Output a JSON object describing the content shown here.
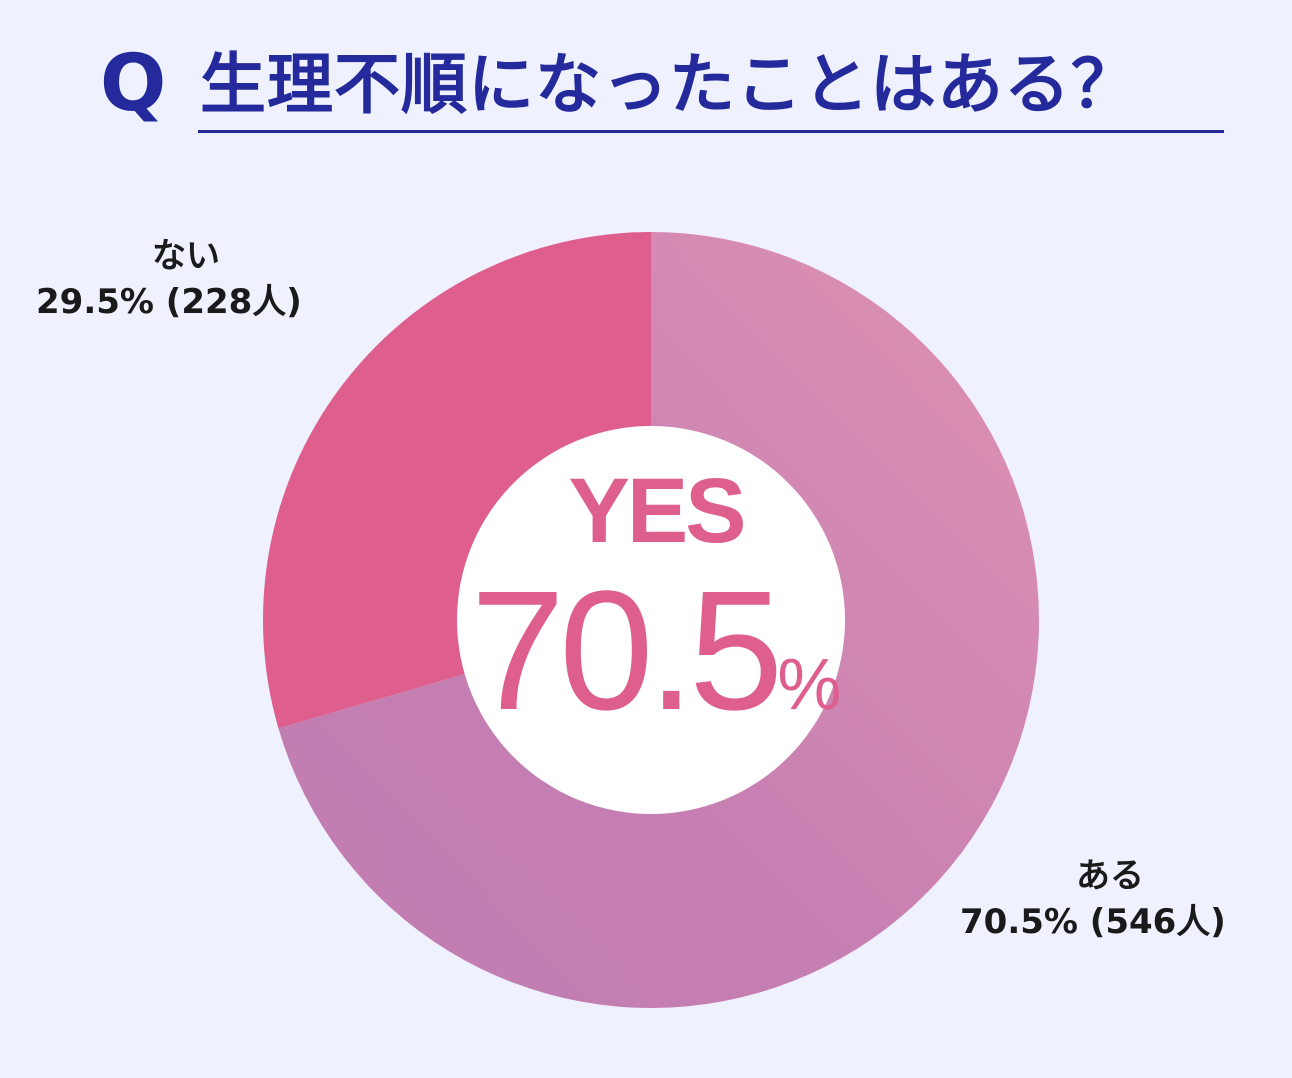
{
  "title": {
    "q_mark": "Q",
    "text": "生理不順になったことはある？"
  },
  "center": {
    "headline": "YES",
    "value": "70.5",
    "unit": "%"
  },
  "chart_data": {
    "type": "pie",
    "title": "生理不順になったことはある？",
    "slices": [
      {
        "label": "ある",
        "percent": 70.5,
        "count": 546,
        "display": "70.5% (546人)",
        "color": "#c97fb0"
      },
      {
        "label": "ない",
        "percent": 29.5,
        "count": 228,
        "display": "29.5% (228人)",
        "color": "#de5f8d"
      }
    ],
    "start": "top",
    "direction": "clockwise",
    "center_hole": true
  },
  "colors": {
    "accent_navy": "#24299b",
    "pink": "#de5f8d",
    "mauve": "#c97fb0",
    "background": "#eff1fe"
  }
}
